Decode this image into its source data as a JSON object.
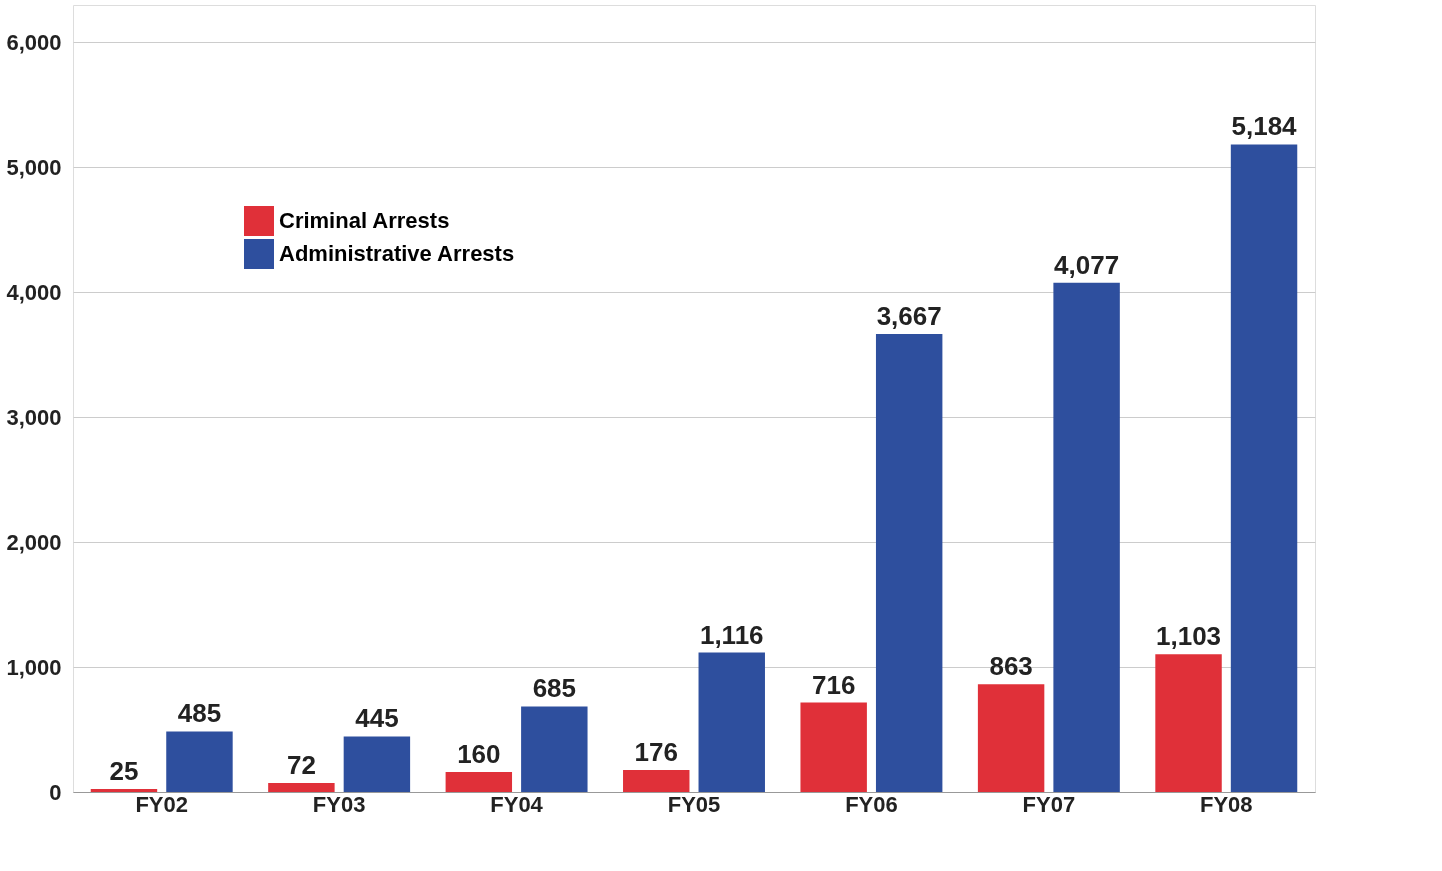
{
  "chart_data": {
    "type": "bar",
    "categories": [
      "FY02",
      "FY03",
      "FY04",
      "FY05",
      "FY06",
      "FY07",
      "FY08"
    ],
    "series": [
      {
        "name": "Criminal Arrests",
        "color": "#e03039",
        "values": [
          25,
          72,
          160,
          176,
          716,
          863,
          1103
        ],
        "value_labels": [
          "25",
          "72",
          "160",
          "176",
          "716",
          "863",
          "1,103"
        ]
      },
      {
        "name": "Administrative Arrests",
        "color": "#2e4f9e",
        "values": [
          485,
          445,
          685,
          1116,
          3667,
          4077,
          5184
        ],
        "value_labels": [
          "485",
          "445",
          "685",
          "1,116",
          "3,667",
          "4,077",
          "5,184"
        ]
      }
    ],
    "ylim": [
      0,
      6300
    ],
    "yticks": [
      0,
      {
        "value": 1000,
        "label": "1,000"
      },
      {
        "value": 2000,
        "label": "2,000"
      },
      {
        "value": 3000,
        "label": "3,000"
      },
      {
        "value": 4000,
        "label": "4,000"
      },
      {
        "value": 5000,
        "label": "5,000"
      },
      {
        "value": 6000,
        "label": "6,000"
      }
    ],
    "grid": "y",
    "legend": "top left"
  }
}
